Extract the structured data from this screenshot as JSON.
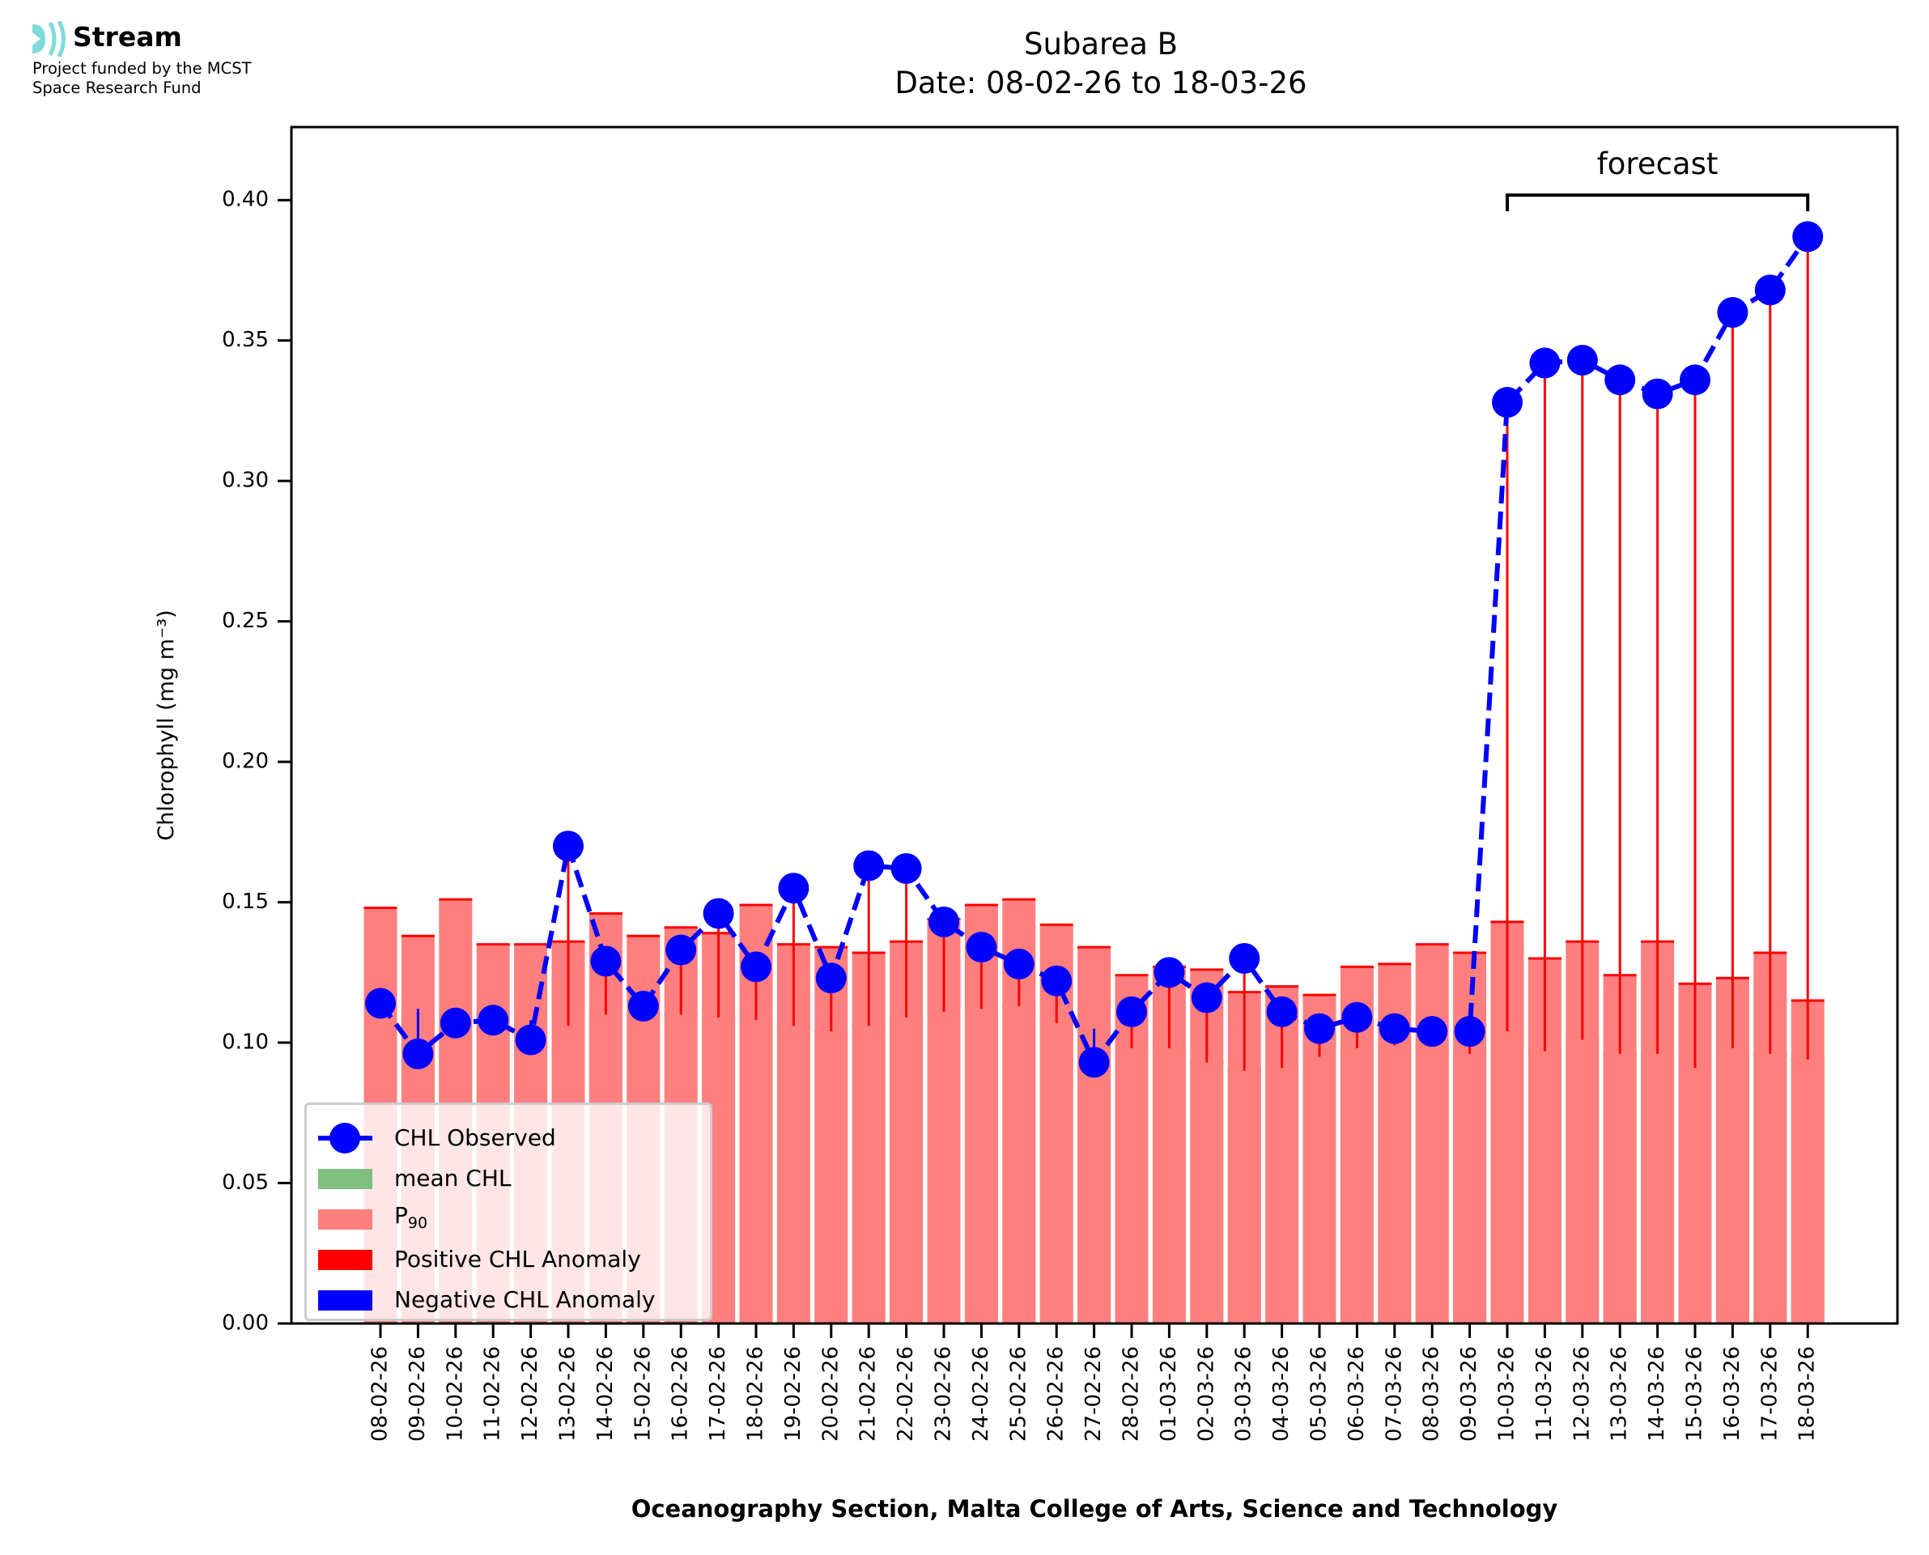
{
  "logo": {
    "name": "Stream",
    "subtitle_lines": [
      "Project funded by the MCST",
      "Space Research Fund"
    ],
    "icon": "stream-waves-icon",
    "color": "#7fdbdb"
  },
  "footer": "Oceanography Section, Malta College of Arts, Science and Technology",
  "chart_data": {
    "type": "bar",
    "title": "Subarea B",
    "subtitle": "Date: 08-02-26 to 18-03-26",
    "xlabel": "Oceanography Section, Malta College of Arts, Science and Technology",
    "ylabel": "Chlorophyll (mg m⁻³)",
    "ylim": [
      0,
      0.426
    ],
    "yticks": [
      0.0,
      0.05,
      0.1,
      0.15,
      0.2,
      0.25,
      0.3,
      0.35,
      0.4
    ],
    "ytick_labels": [
      "0.00",
      "0.05",
      "0.10",
      "0.15",
      "0.20",
      "0.25",
      "0.30",
      "0.35",
      "0.40"
    ],
    "grid": false,
    "categories": [
      "08-02-26",
      "09-02-26",
      "10-02-26",
      "11-02-26",
      "12-02-26",
      "13-02-26",
      "14-02-26",
      "15-02-26",
      "16-02-26",
      "17-02-26",
      "18-02-26",
      "19-02-26",
      "20-02-26",
      "21-02-26",
      "22-02-26",
      "23-02-26",
      "24-02-26",
      "25-02-26",
      "26-02-26",
      "27-02-26",
      "28-02-26",
      "01-03-26",
      "02-03-26",
      "03-03-26",
      "04-03-26",
      "05-03-26",
      "06-03-26",
      "07-03-26",
      "08-03-26",
      "09-03-26",
      "10-03-26",
      "11-03-26",
      "12-03-26",
      "13-03-26",
      "14-03-26",
      "15-03-26",
      "16-03-26",
      "17-03-26",
      "18-03-26"
    ],
    "series": [
      {
        "name": "mean CHL",
        "kind": "bar",
        "color": "#7fbf7f",
        "edge_color": "#008000",
        "values": [
          0.114,
          0.112,
          0.109,
          0.11,
          0.108,
          0.106,
          0.11,
          0.11,
          0.11,
          0.109,
          0.108,
          0.106,
          0.104,
          0.106,
          0.109,
          0.111,
          0.112,
          0.113,
          0.107,
          0.105,
          0.098,
          0.098,
          0.093,
          0.09,
          0.091,
          0.095,
          0.098,
          0.099,
          0.099,
          0.096,
          0.104,
          0.097,
          0.101,
          0.096,
          0.096,
          0.091,
          0.098,
          0.096,
          0.094
        ]
      },
      {
        "name": "P90",
        "kind": "bar",
        "color": "#ff7f7f",
        "edge_color": "#ff0000",
        "values": [
          0.148,
          0.138,
          0.151,
          0.135,
          0.135,
          0.136,
          0.146,
          0.138,
          0.141,
          0.139,
          0.149,
          0.135,
          0.134,
          0.132,
          0.136,
          0.144,
          0.149,
          0.151,
          0.142,
          0.134,
          0.124,
          0.127,
          0.126,
          0.118,
          0.12,
          0.117,
          0.127,
          0.128,
          0.135,
          0.132,
          0.143,
          0.13,
          0.136,
          0.124,
          0.136,
          0.121,
          0.123,
          0.132,
          0.115
        ]
      },
      {
        "name": "CHL Observed",
        "kind": "line",
        "color": "#0000ff",
        "linestyle": "dashed",
        "marker": "circle",
        "values": [
          0.114,
          0.096,
          0.107,
          0.108,
          0.101,
          0.17,
          0.129,
          0.113,
          0.133,
          0.146,
          0.127,
          0.155,
          0.123,
          0.163,
          0.162,
          0.143,
          0.134,
          0.128,
          0.122,
          0.093,
          0.111,
          0.125,
          0.116,
          0.13,
          0.111,
          0.105,
          0.109,
          0.105,
          0.104,
          0.104,
          0.328,
          0.342,
          0.343,
          0.336,
          0.331,
          0.336,
          0.36,
          0.368,
          0.387
        ]
      }
    ],
    "anomaly": {
      "positive_color": "#ff0000",
      "negative_color": "#0000ff",
      "rule": "vertical line from mean CHL to observed; red if observed > mean, blue if observed < mean"
    },
    "annotation": {
      "text": "forecast",
      "from": "10-03-26",
      "to": "18-03-26"
    },
    "legend": {
      "position": "lower-left",
      "entries": [
        {
          "label": "CHL Observed",
          "type": "line-marker",
          "color": "#0000ff"
        },
        {
          "label": "mean CHL",
          "type": "patch",
          "color": "#7fbf7f"
        },
        {
          "label": "P",
          "sub": "90",
          "type": "patch",
          "color": "#ff7f7f"
        },
        {
          "label": "Positive CHL Anomaly",
          "type": "patch",
          "color": "#ff0000"
        },
        {
          "label": "Negative CHL Anomaly",
          "type": "patch",
          "color": "#0000ff"
        }
      ]
    }
  }
}
